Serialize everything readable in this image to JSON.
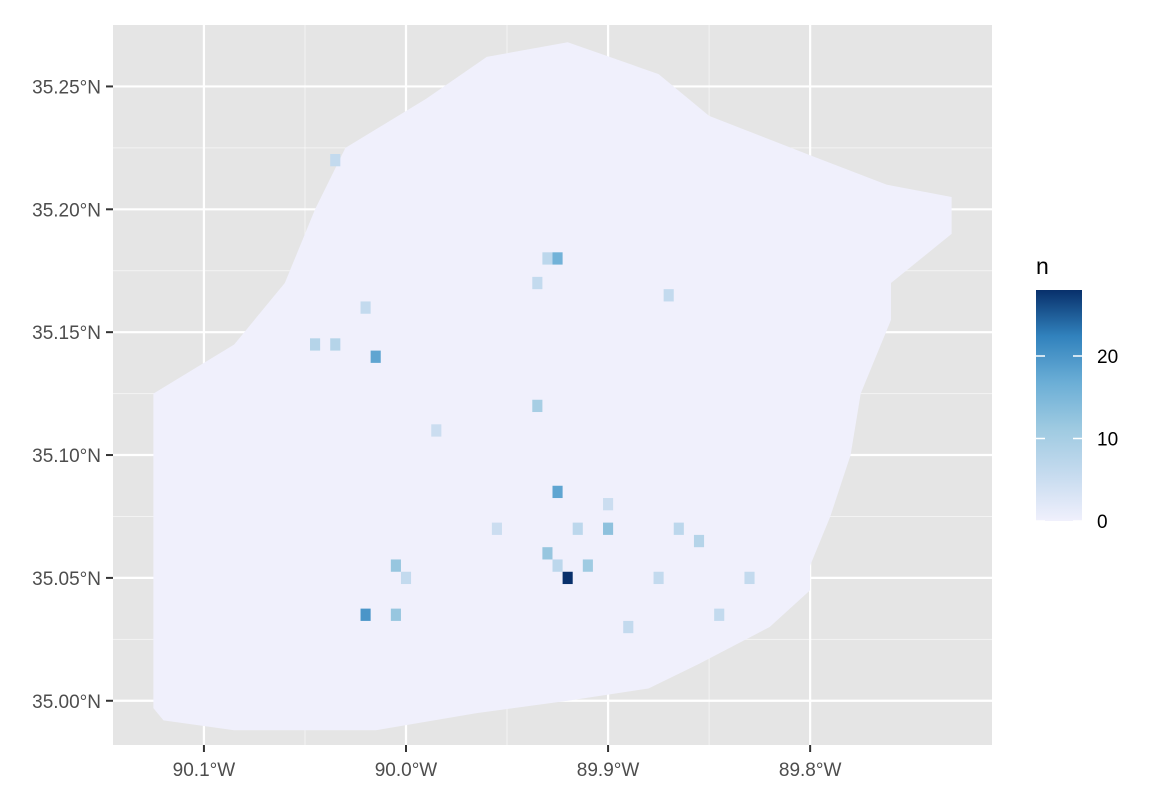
{
  "chart_data": {
    "type": "heatmap",
    "title": "",
    "xlabel": "",
    "ylabel": "",
    "xlim": [
      -90.145,
      -89.71
    ],
    "ylim": [
      34.982,
      35.275
    ],
    "x_ticks": [
      -90.1,
      -90.0,
      -89.9,
      -89.8
    ],
    "x_tick_labels": [
      "90.1°W",
      "90.0°W",
      "89.9°W",
      "89.8°W"
    ],
    "y_ticks": [
      35.0,
      35.05,
      35.1,
      35.15,
      35.2,
      35.25
    ],
    "y_tick_labels": [
      "35.00°N",
      "35.05°N",
      "35.10°N",
      "35.15°N",
      "35.20°N",
      "35.25°N"
    ],
    "bin_width": [
      0.005,
      0.005
    ],
    "legend": {
      "title": "n",
      "position": "right",
      "min": 0,
      "max": 28,
      "breaks": [
        0,
        10,
        20
      ],
      "break_labels": [
        "0",
        "10",
        "20"
      ],
      "colors": [
        "#f0f0fc",
        "#c6dbef",
        "#9ecae1",
        "#6baed6",
        "#3182bd",
        "#08306b"
      ]
    },
    "grid": true,
    "panel_background": "#e5e5e5",
    "grid_color": "#ffffff",
    "outline": [
      [
        -90.125,
        34.997
      ],
      [
        -90.125,
        35.125
      ],
      [
        -90.085,
        35.145
      ],
      [
        -90.06,
        35.17
      ],
      [
        -90.045,
        35.2
      ],
      [
        -90.03,
        35.225
      ],
      [
        -89.99,
        35.245
      ],
      [
        -89.96,
        35.262
      ],
      [
        -89.92,
        35.268
      ],
      [
        -89.875,
        35.255
      ],
      [
        -89.85,
        35.238
      ],
      [
        -89.8,
        35.222
      ],
      [
        -89.762,
        35.21
      ],
      [
        -89.73,
        35.205
      ],
      [
        -89.73,
        35.19
      ],
      [
        -89.76,
        35.17
      ],
      [
        -89.76,
        35.155
      ],
      [
        -89.775,
        35.125
      ],
      [
        -89.78,
        35.1
      ],
      [
        -89.79,
        35.075
      ],
      [
        -89.8,
        35.055
      ],
      [
        -89.8,
        35.045
      ],
      [
        -89.82,
        35.03
      ],
      [
        -89.855,
        35.015
      ],
      [
        -89.88,
        35.005
      ],
      [
        -89.92,
        35.0
      ],
      [
        -89.965,
        34.995
      ],
      [
        -90.015,
        34.988
      ],
      [
        -90.085,
        34.988
      ],
      [
        -90.12,
        34.992
      ]
    ],
    "cells": [
      {
        "x": -89.92,
        "y": 35.05,
        "n": 28
      },
      {
        "x": -90.02,
        "y": 35.035,
        "n": 20
      },
      {
        "x": -89.925,
        "y": 35.085,
        "n": 18
      },
      {
        "x": -90.015,
        "y": 35.14,
        "n": 18
      },
      {
        "x": -89.925,
        "y": 35.18,
        "n": 16
      },
      {
        "x": -89.9,
        "y": 35.07,
        "n": 13
      },
      {
        "x": -89.93,
        "y": 35.06,
        "n": 12
      },
      {
        "x": -90.005,
        "y": 35.035,
        "n": 12
      },
      {
        "x": -90.005,
        "y": 35.055,
        "n": 12
      },
      {
        "x": -89.91,
        "y": 35.055,
        "n": 11
      },
      {
        "x": -89.935,
        "y": 35.12,
        "n": 10
      },
      {
        "x": -90.045,
        "y": 35.145,
        "n": 8
      },
      {
        "x": -90.035,
        "y": 35.145,
        "n": 8
      },
      {
        "x": -89.855,
        "y": 35.065,
        "n": 8
      },
      {
        "x": -89.865,
        "y": 35.07,
        "n": 7
      },
      {
        "x": -89.875,
        "y": 35.05,
        "n": 6
      },
      {
        "x": -89.925,
        "y": 35.055,
        "n": 7
      },
      {
        "x": -89.915,
        "y": 35.07,
        "n": 7
      },
      {
        "x": -89.93,
        "y": 35.18,
        "n": 7
      },
      {
        "x": -89.935,
        "y": 35.17,
        "n": 6
      },
      {
        "x": -89.89,
        "y": 35.03,
        "n": 6
      },
      {
        "x": -89.845,
        "y": 35.035,
        "n": 6
      },
      {
        "x": -89.83,
        "y": 35.05,
        "n": 6
      },
      {
        "x": -89.87,
        "y": 35.165,
        "n": 6
      },
      {
        "x": -90.02,
        "y": 35.16,
        "n": 6
      },
      {
        "x": -90.0,
        "y": 35.05,
        "n": 6
      },
      {
        "x": -90.035,
        "y": 35.22,
        "n": 6
      },
      {
        "x": -89.9,
        "y": 35.08,
        "n": 5
      },
      {
        "x": -89.985,
        "y": 35.11,
        "n": 5
      },
      {
        "x": -89.955,
        "y": 35.07,
        "n": 5
      }
    ]
  }
}
